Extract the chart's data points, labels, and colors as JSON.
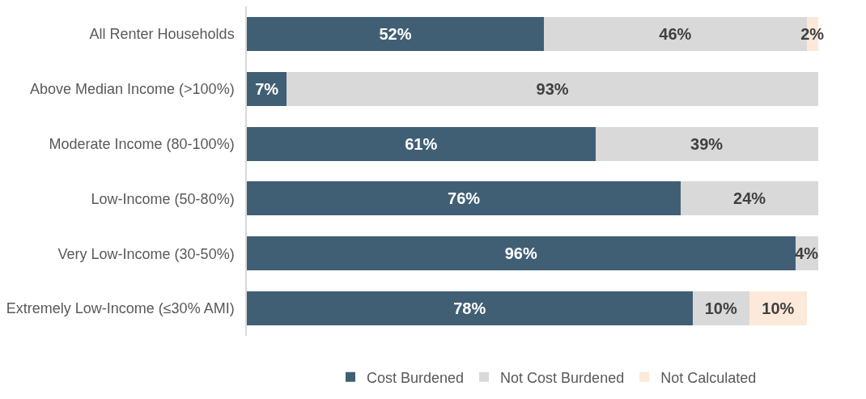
{
  "chart_data": {
    "type": "bar",
    "orientation": "horizontal",
    "stacked": true,
    "legend": "bottom",
    "tick_labels": "y",
    "categories": [
      "All Renter Households",
      "Above Median Income (>100%)",
      "Moderate Income (80-100%)",
      "Low-Income (50-80%)",
      "Very Low-Income (30-50%)",
      "Extremely Low-Income (≤30% AMI)"
    ],
    "series": [
      {
        "name": "Cost Burdened",
        "color": "#405f75",
        "values": [
          52,
          7,
          61,
          76,
          96,
          78
        ],
        "value_labels": [
          "52%",
          "7%",
          "61%",
          "76%",
          "96%",
          "78%"
        ]
      },
      {
        "name": "Not Cost Burdened",
        "color": "#d9d9d9",
        "values": [
          46,
          93,
          39,
          24,
          4,
          10
        ],
        "value_labels": [
          "46%",
          "93%",
          "39%",
          "24%",
          "4%",
          "10%"
        ]
      },
      {
        "name": "Not Calculated",
        "color": "#fde9d9",
        "values": [
          2,
          null,
          null,
          null,
          null,
          10
        ],
        "value_labels": [
          "2%",
          null,
          null,
          null,
          null,
          "10%"
        ]
      }
    ]
  }
}
